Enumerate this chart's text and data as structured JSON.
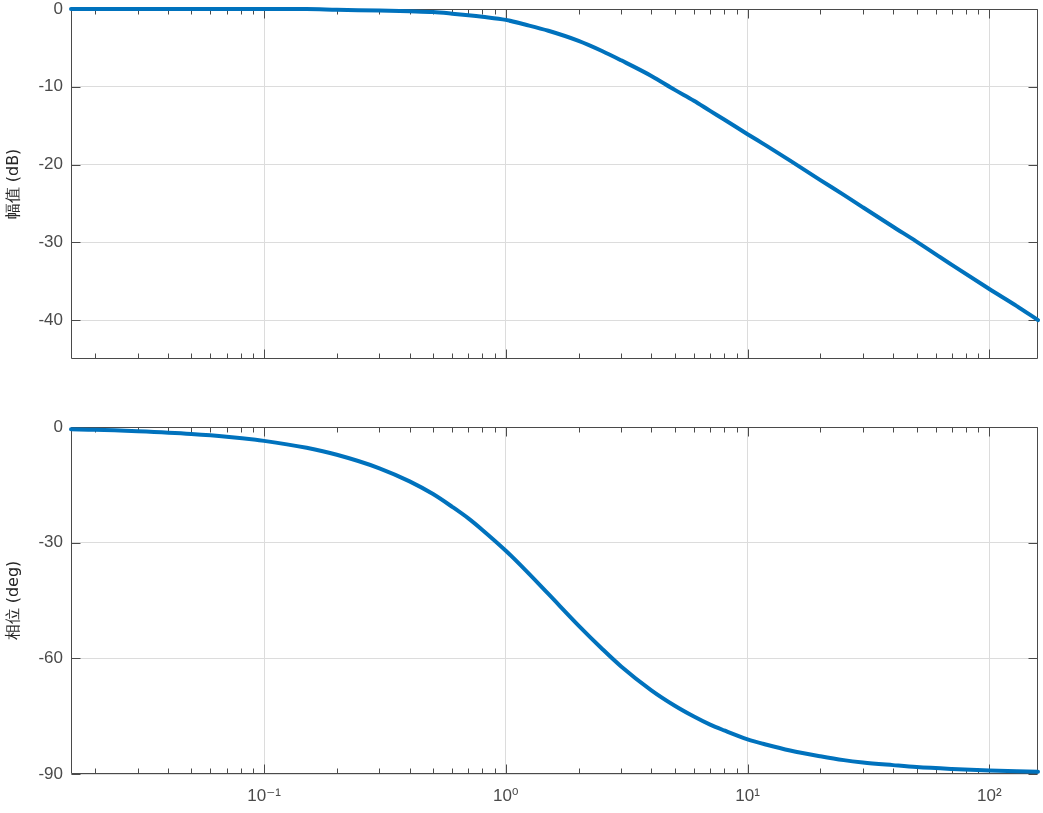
{
  "chart_data": [
    {
      "type": "line",
      "ylabel": "幅值 (dB)",
      "log": "x",
      "grid": true,
      "tick_labels": "y",
      "x": [
        0.0159,
        0.02,
        0.03,
        0.05,
        0.07,
        0.1,
        0.15,
        0.2,
        0.3,
        0.4,
        0.5,
        0.6,
        0.7,
        0.8,
        1,
        1.2,
        1.5,
        2,
        2.5,
        3,
        4,
        5,
        6,
        7,
        8,
        10,
        12,
        15,
        20,
        25,
        30,
        40,
        50,
        70,
        100,
        130,
        159
      ],
      "series": [
        {
          "color": "#0072bd",
          "values": [
            0,
            0,
            0,
            0,
            0,
            0,
            0,
            -0.1,
            -0.2,
            -0.3,
            -0.4,
            -0.6,
            -0.8,
            -1.0,
            -1.4,
            -2.0,
            -2.8,
            -4.1,
            -5.4,
            -6.6,
            -8.6,
            -10.4,
            -11.8,
            -13.1,
            -14.2,
            -16.1,
            -17.6,
            -19.5,
            -22.0,
            -23.9,
            -25.5,
            -28.0,
            -29.9,
            -32.9,
            -36.0,
            -38.2,
            -40.0
          ]
        }
      ],
      "xlim": [
        0.0159,
        159
      ],
      "xticks": [
        {
          "value": 0.02,
          "label": null
        },
        {
          "value": 0.03,
          "label": null
        },
        {
          "value": 0.04,
          "label": null
        },
        {
          "value": 0.05,
          "label": null
        },
        {
          "value": 0.06,
          "label": null
        },
        {
          "value": 0.07,
          "label": null
        },
        {
          "value": 0.08,
          "label": null
        },
        {
          "value": 0.09,
          "label": null
        },
        0.1,
        {
          "value": 0.2,
          "label": null
        },
        {
          "value": 0.3,
          "label": null
        },
        {
          "value": 0.4,
          "label": null
        },
        {
          "value": 0.5,
          "label": null
        },
        {
          "value": 0.6,
          "label": null
        },
        {
          "value": 0.7,
          "label": null
        },
        {
          "value": 0.8,
          "label": null
        },
        {
          "value": 0.9,
          "label": null
        },
        1,
        {
          "value": 2,
          "label": null
        },
        {
          "value": 3,
          "label": null
        },
        {
          "value": 4,
          "label": null
        },
        {
          "value": 5,
          "label": null
        },
        {
          "value": 6,
          "label": null
        },
        {
          "value": 7,
          "label": null
        },
        {
          "value": 8,
          "label": null
        },
        {
          "value": 9,
          "label": null
        },
        10,
        {
          "value": 20,
          "label": null
        },
        {
          "value": 30,
          "label": null
        },
        {
          "value": 40,
          "label": null
        },
        {
          "value": 50,
          "label": null
        },
        {
          "value": 60,
          "label": null
        },
        {
          "value": 70,
          "label": null
        },
        {
          "value": 80,
          "label": null
        },
        {
          "value": 90,
          "label": null
        },
        100
      ],
      "ylim": [
        -45,
        0
      ],
      "yticks": [
        -40,
        -30,
        -20,
        -10,
        0
      ]
    },
    {
      "type": "line",
      "ylabel": "相位 (deg)",
      "log": "x",
      "grid": true,
      "x": [
        0.0159,
        0.02,
        0.03,
        0.05,
        0.07,
        0.1,
        0.15,
        0.2,
        0.3,
        0.4,
        0.5,
        0.6,
        0.7,
        0.8,
        1,
        1.2,
        1.5,
        2,
        2.5,
        3,
        4,
        5,
        6,
        7,
        8,
        10,
        12,
        15,
        20,
        25,
        30,
        40,
        50,
        70,
        100,
        130,
        159
      ],
      "series": [
        {
          "color": "#0072bd",
          "values": [
            -0.6,
            -0.7,
            -1.1,
            -1.8,
            -2.5,
            -3.6,
            -5.4,
            -7.2,
            -10.7,
            -14.1,
            -17.4,
            -20.7,
            -23.7,
            -26.7,
            -32.1,
            -37.0,
            -43.3,
            -51.5,
            -57.5,
            -62.1,
            -68.3,
            -72.3,
            -75.1,
            -77.2,
            -78.7,
            -81.0,
            -82.4,
            -83.9,
            -85.4,
            -86.4,
            -87.0,
            -87.7,
            -88.2,
            -88.7,
            -89.1,
            -89.3,
            -89.4
          ]
        }
      ],
      "xlim": [
        0.0159,
        159
      ],
      "xticks": [
        {
          "value": 0.02,
          "label": null
        },
        {
          "value": 0.03,
          "label": null
        },
        {
          "value": 0.04,
          "label": null
        },
        {
          "value": 0.05,
          "label": null
        },
        {
          "value": 0.06,
          "label": null
        },
        {
          "value": 0.07,
          "label": null
        },
        {
          "value": 0.08,
          "label": null
        },
        {
          "value": 0.09,
          "label": null
        },
        {
          "value": 0.1,
          "label": "10⁻¹"
        },
        {
          "value": 0.2,
          "label": null
        },
        {
          "value": 0.3,
          "label": null
        },
        {
          "value": 0.4,
          "label": null
        },
        {
          "value": 0.5,
          "label": null
        },
        {
          "value": 0.6,
          "label": null
        },
        {
          "value": 0.7,
          "label": null
        },
        {
          "value": 0.8,
          "label": null
        },
        {
          "value": 0.9,
          "label": null
        },
        {
          "value": 1,
          "label": "10⁰"
        },
        {
          "value": 2,
          "label": null
        },
        {
          "value": 3,
          "label": null
        },
        {
          "value": 4,
          "label": null
        },
        {
          "value": 5,
          "label": null
        },
        {
          "value": 6,
          "label": null
        },
        {
          "value": 7,
          "label": null
        },
        {
          "value": 8,
          "label": null
        },
        {
          "value": 9,
          "label": null
        },
        {
          "value": 10,
          "label": "10¹"
        },
        {
          "value": 20,
          "label": null
        },
        {
          "value": 30,
          "label": null
        },
        {
          "value": 40,
          "label": null
        },
        {
          "value": 50,
          "label": null
        },
        {
          "value": 60,
          "label": null
        },
        {
          "value": 70,
          "label": null
        },
        {
          "value": 80,
          "label": null
        },
        {
          "value": 90,
          "label": null
        },
        {
          "value": 100,
          "label": "10²"
        }
      ],
      "ylim": [
        -90,
        0
      ],
      "yticks": [
        -90,
        -60,
        -30,
        0
      ]
    }
  ]
}
